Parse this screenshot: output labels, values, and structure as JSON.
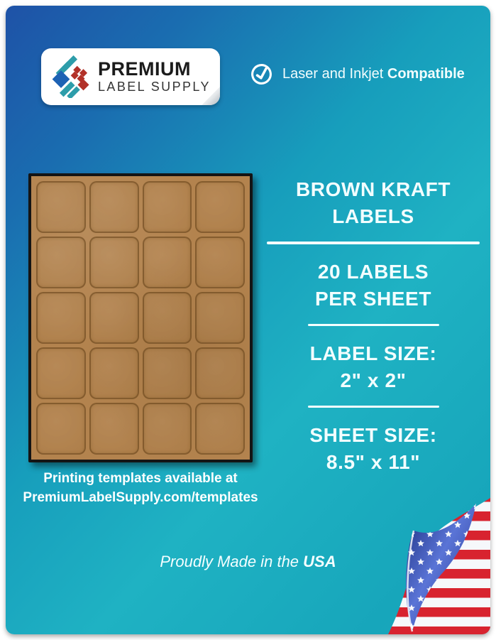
{
  "brand": {
    "logo_line1": "PREMIUM",
    "logo_line2": "LABEL SUPPLY",
    "logo_colors": {
      "blue": "#1d62b4",
      "teal": "#2d9daa",
      "red": "#b23128"
    }
  },
  "compatibility": {
    "text_regular": "Laser and Inkjet ",
    "text_bold": "Compatible",
    "icon": "check-circle-icon"
  },
  "sheet": {
    "rows": 5,
    "columns": 4,
    "labels_total": 20,
    "kraft_color": "#b3834e"
  },
  "templates_note": {
    "line1": "Printing templates available at",
    "line2": "PremiumLabelSupply.com/templates"
  },
  "specs": {
    "sections": [
      {
        "line1": "BROWN KRAFT",
        "line2": "LABELS"
      },
      {
        "line1": "20 LABELS",
        "line2": "PER SHEET"
      },
      {
        "line1": "LABEL SIZE:",
        "line2": "2\" x 2\""
      },
      {
        "line1": "SHEET SIZE:",
        "line2": "8.5\" x 11\""
      }
    ]
  },
  "footer": {
    "text_regular": "Proudly Made in the ",
    "text_bold": "USA"
  },
  "flag": {
    "name": "usa-flag-page-curl",
    "red": "#d8232f",
    "blue": "#2b3f9d"
  },
  "theme": {
    "background_blue": "#1e52a7",
    "background_teal": "#1fb2c3",
    "text_white": "#ffffff"
  }
}
